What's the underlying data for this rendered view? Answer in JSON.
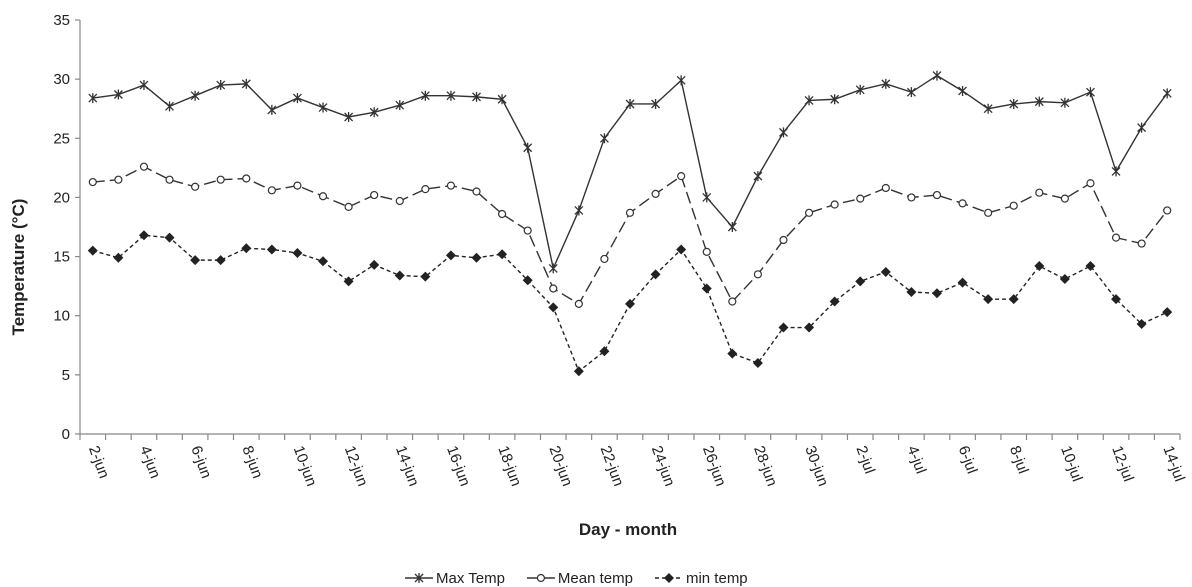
{
  "chart_data": {
    "type": "line",
    "x_label": "Day - month",
    "y_label": "Temperature (°C)",
    "categories": [
      "2-jun",
      null,
      "4-jun",
      null,
      "6-jun",
      null,
      "8-jun",
      null,
      "10-jun",
      null,
      "12-jun",
      null,
      "14-jun",
      null,
      "16-jun",
      null,
      "18-jun",
      null,
      "20-jun",
      null,
      "22-jun",
      null,
      "24-jun",
      null,
      "26-jun",
      null,
      "28-jun",
      null,
      "30-jun",
      null,
      "2-jul",
      null,
      "4-jul",
      null,
      "6-jul",
      null,
      "8-jul",
      null,
      "10-jul",
      null,
      "12-jul",
      null,
      "14-jul"
    ],
    "series": [
      {
        "name": "Max Temp",
        "color": "#333333",
        "dash": "solid",
        "marker": "star",
        "values": [
          28.4,
          28.7,
          29.5,
          27.7,
          28.6,
          29.5,
          29.6,
          27.4,
          28.4,
          27.6,
          26.8,
          27.2,
          27.8,
          28.6,
          28.6,
          28.5,
          28.3,
          24.2,
          14.0,
          18.9,
          25.0,
          27.9,
          27.9,
          29.9,
          20.0,
          17.5,
          21.8,
          25.5,
          28.2,
          28.3,
          29.1,
          29.6,
          28.9,
          30.3,
          29.0,
          27.5,
          27.9,
          28.1,
          28.0,
          28.9,
          22.2,
          25.9,
          28.8
        ]
      },
      {
        "name": "Mean temp",
        "color": "#333333",
        "dash": "long",
        "marker": "circle",
        "values": [
          21.3,
          21.5,
          22.6,
          21.5,
          20.9,
          21.5,
          21.6,
          20.6,
          21.0,
          20.1,
          19.2,
          20.2,
          19.7,
          20.7,
          21.0,
          20.5,
          18.6,
          17.2,
          12.3,
          11.0,
          14.8,
          18.7,
          20.3,
          21.8,
          15.4,
          11.2,
          13.5,
          16.4,
          18.7,
          19.4,
          19.9,
          20.8,
          20.0,
          20.2,
          19.5,
          18.7,
          19.3,
          20.4,
          19.9,
          21.2,
          16.6,
          16.1,
          18.9
        ]
      },
      {
        "name": "min temp",
        "color": "#222222",
        "dash": "short",
        "marker": "diamond",
        "values": [
          15.5,
          14.9,
          16.8,
          16.6,
          14.7,
          14.7,
          15.7,
          15.6,
          15.3,
          14.6,
          12.9,
          14.3,
          13.4,
          13.3,
          15.1,
          14.9,
          15.2,
          13.0,
          10.7,
          5.3,
          7.0,
          11.0,
          13.5,
          15.6,
          12.3,
          6.8,
          6.0,
          9.0,
          9.0,
          11.2,
          12.9,
          13.7,
          12.0,
          11.9,
          12.8,
          11.4,
          11.4,
          14.2,
          13.1,
          14.2,
          11.4,
          9.3,
          10.3
        ]
      }
    ],
    "ylim": [
      0,
      35
    ],
    "yticks": [
      0,
      5,
      10,
      15,
      20,
      25,
      30,
      35
    ],
    "legend": "bottom"
  }
}
